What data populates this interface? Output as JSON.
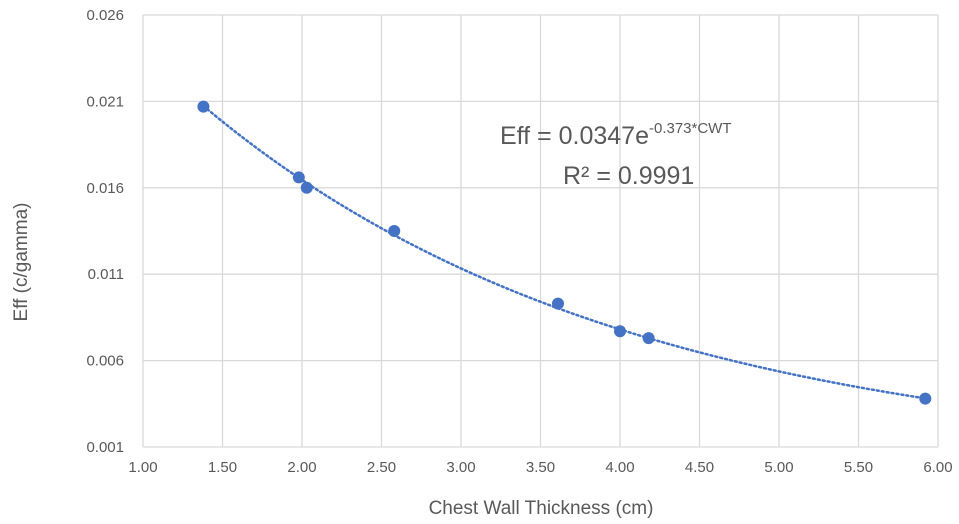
{
  "chart_data": {
    "type": "scatter",
    "xlabel": "Chest Wall Thickness (cm)",
    "ylabel": "Eff (c/gamma)",
    "xlim": [
      1.0,
      6.0
    ],
    "ylim": [
      0.001,
      0.026
    ],
    "x_ticks": [
      "1.00",
      "1.50",
      "2.00",
      "2.50",
      "3.00",
      "3.50",
      "4.00",
      "4.50",
      "5.00",
      "5.50",
      "6.00"
    ],
    "y_ticks": [
      "0.001",
      "0.006",
      "0.011",
      "0.016",
      "0.021",
      "0.026"
    ],
    "grid": true,
    "legend": "none",
    "series": [
      {
        "points": [
          {
            "x": 1.38,
            "y": 0.0207
          },
          {
            "x": 1.98,
            "y": 0.0166
          },
          {
            "x": 2.03,
            "y": 0.016
          },
          {
            "x": 2.58,
            "y": 0.0135
          },
          {
            "x": 3.61,
            "y": 0.0093
          },
          {
            "x": 4.0,
            "y": 0.0077
          },
          {
            "x": 4.18,
            "y": 0.0073
          },
          {
            "x": 5.92,
            "y": 0.0038
          }
        ],
        "color": "#4472C4"
      }
    ],
    "trendline": {
      "type": "exponential",
      "a": 0.0347,
      "b": -0.373,
      "x_range": [
        1.38,
        5.92
      ],
      "style": "dotted",
      "color": "#4472C4"
    },
    "annotations": {
      "equation_main": "Eff = 0.0347e",
      "equation_exponent": "-0.373*CWT",
      "r_squared": "R² = 0.9991"
    }
  }
}
